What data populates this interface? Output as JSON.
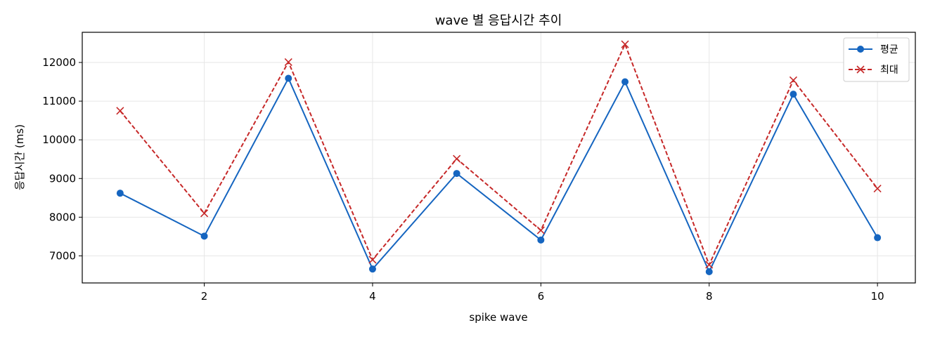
{
  "chart_data": {
    "type": "line",
    "title": "wave 별 응답시간 추이",
    "xlabel": "spike wave",
    "ylabel": "응답시간 (ms)",
    "x": [
      1,
      2,
      3,
      4,
      5,
      6,
      7,
      8,
      9,
      10
    ],
    "xlim": [
      0.55,
      10.45
    ],
    "ylim": [
      6300,
      12780
    ],
    "xticks": [
      2,
      4,
      6,
      8,
      10
    ],
    "yticks": [
      7000,
      8000,
      9000,
      10000,
      11000,
      12000
    ],
    "grid": true,
    "legend_position": "top-right",
    "series": [
      {
        "name": "평균",
        "values": [
          8620,
          7510,
          11590,
          6660,
          9130,
          7410,
          11500,
          6590,
          11180,
          7470
        ],
        "color": "#1565c0",
        "line_style": "solid",
        "marker": "circle"
      },
      {
        "name": "최대",
        "values": [
          10750,
          8100,
          12010,
          6900,
          9510,
          7660,
          12470,
          6770,
          11540,
          8740
        ],
        "color": "#c62828",
        "line_style": "dashed",
        "marker": "x"
      }
    ]
  }
}
